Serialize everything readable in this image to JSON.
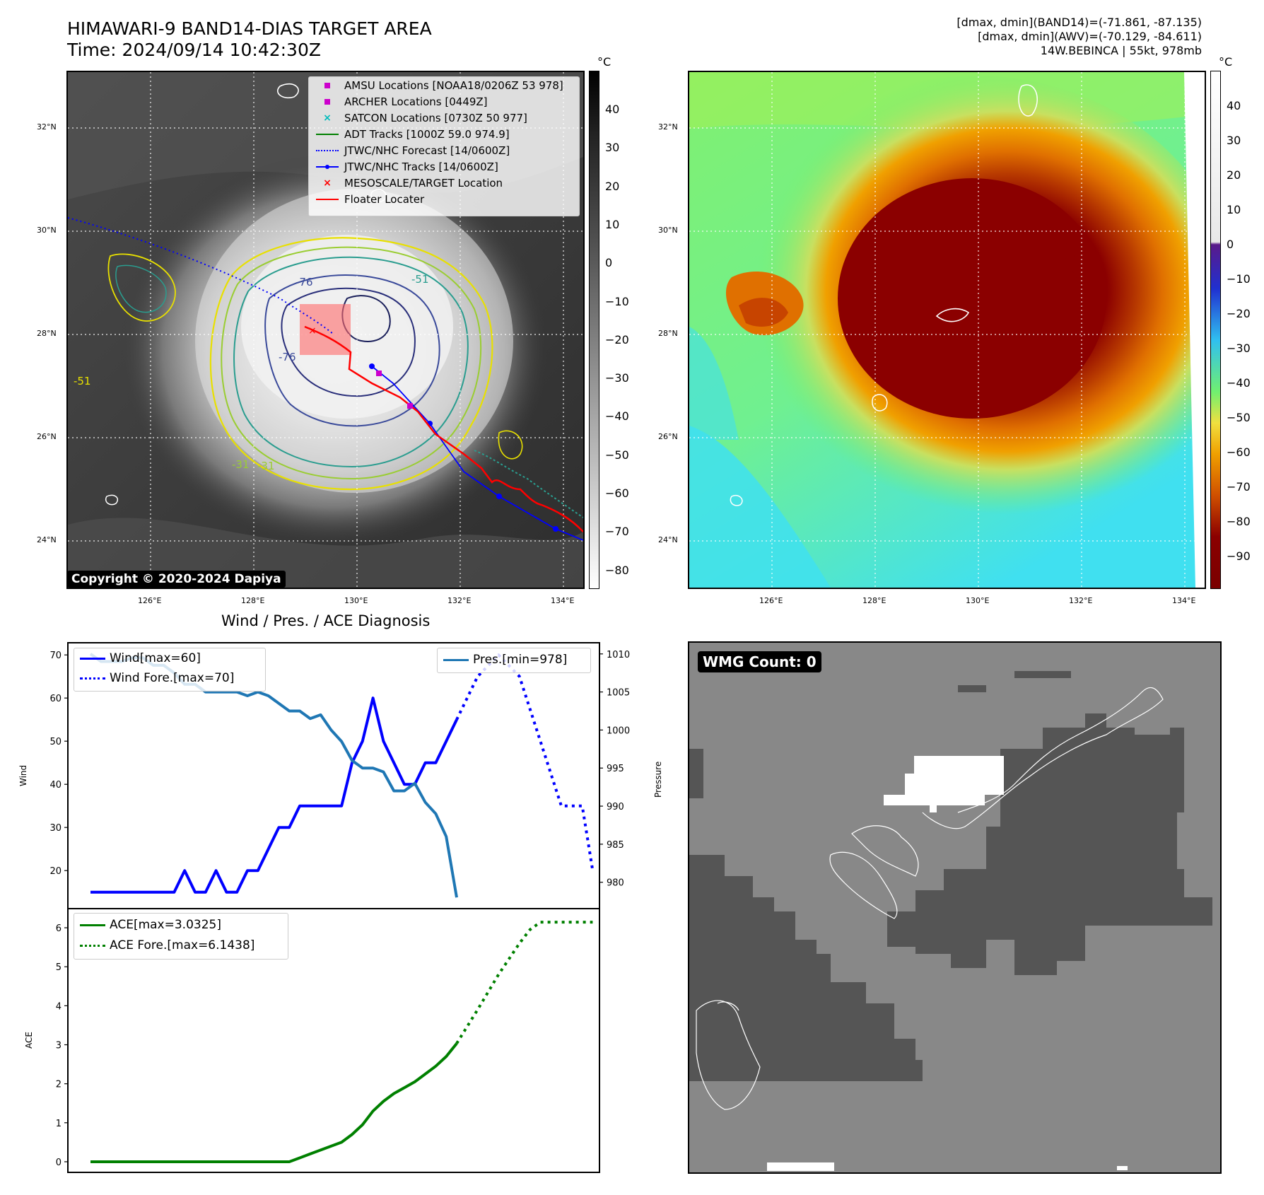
{
  "header": {
    "title_line1": "HIMAWARI-9 BAND14-DIAS TARGET AREA",
    "title_line2": "Time: 2024/09/14 10:42:30Z",
    "info_line1": "[dmax, dmin](BAND14)=(-71.861, -87.135)",
    "info_line2": "[dmax, dmin](AWV)=(-70.129, -84.611)",
    "info_line3": "14W.BEBINCA | 55kt, 978mb"
  },
  "map_ir": {
    "copyright": "Copyright © 2020-2024 Dapiya",
    "unit": "°C",
    "lat_labels": [
      "32°N",
      "30°N",
      "28°N",
      "26°N",
      "24°N"
    ],
    "lon_labels": [
      "126°E",
      "128°E",
      "130°E",
      "132°E",
      "134°E"
    ],
    "colorbar_ticks": [
      "40",
      "30",
      "20",
      "10",
      "0",
      "−10",
      "−20",
      "−30",
      "−40",
      "−50",
      "−60",
      "−70",
      "−80"
    ],
    "contour_labels": [
      "-76",
      "-76",
      "-31",
      "-31",
      "-51",
      "-51"
    ],
    "legend": [
      {
        "label": "AMSU Locations [NOAA18/0206Z 53 978]",
        "symbol": "square",
        "color": "#cc00cc"
      },
      {
        "label": "ARCHER Locations [0449Z]",
        "symbol": "square",
        "color": "#cc00cc"
      },
      {
        "label": "SATCON Locations [0730Z 50 977]",
        "symbol": "x",
        "color": "#00bbbb"
      },
      {
        "label": "ADT Tracks [1000Z 59.0 974.9]",
        "symbol": "line",
        "color": "#008000"
      },
      {
        "label": "JTWC/NHC Forecast [14/0600Z]",
        "symbol": "dotted",
        "color": "#0000ff"
      },
      {
        "label": "JTWC/NHC Tracks [14/0600Z]",
        "symbol": "line-dot",
        "color": "#0000ff"
      },
      {
        "label": "MESOSCALE/TARGET Location",
        "symbol": "x",
        "color": "#ff0000"
      },
      {
        "label": "Floater Locater",
        "symbol": "line",
        "color": "#ff0000"
      }
    ]
  },
  "map_color": {
    "unit": "°C",
    "lat_labels": [
      "32°N",
      "30°N",
      "28°N",
      "26°N",
      "24°N"
    ],
    "lon_labels": [
      "126°E",
      "128°E",
      "130°E",
      "132°E",
      "134°E"
    ],
    "colorbar_ticks": [
      "40",
      "30",
      "20",
      "10",
      "0",
      "−10",
      "−20",
      "−30",
      "−40",
      "−50",
      "−60",
      "−70",
      "−80",
      "−90"
    ]
  },
  "wmg": {
    "badge": "WMG Count: 0"
  },
  "chart_data": [
    {
      "type": "line",
      "title": "Wind / Pres. / ACE Diagnosis",
      "ylabel": "Wind",
      "y2label": "Pressure",
      "ylim": [
        12,
        72
      ],
      "y2lim": [
        977,
        1011
      ],
      "yticks": [
        "70",
        "60",
        "50",
        "40",
        "30",
        "20"
      ],
      "y2ticks": [
        "1010",
        "1005",
        "1000",
        "995",
        "990",
        "985",
        "980"
      ],
      "x": [
        0,
        1,
        2,
        3,
        4,
        5,
        6,
        7,
        8,
        9,
        10,
        11,
        12,
        13,
        14,
        15,
        16,
        17,
        18,
        19,
        20,
        21,
        22,
        23,
        24,
        25,
        26,
        27,
        28,
        29,
        30,
        31,
        32,
        33,
        34,
        35,
        36,
        37
      ],
      "series": [
        {
          "name": "Wind[max=60]",
          "color": "#0000ff",
          "style": "solid",
          "axis": "left",
          "x": [
            0,
            1,
            2,
            3,
            4,
            5,
            6,
            7,
            8,
            9,
            10,
            11,
            12,
            13,
            14,
            15,
            16,
            17,
            18,
            19,
            20,
            21,
            22,
            23,
            24,
            25,
            26,
            27,
            28,
            29,
            30,
            31,
            32,
            33,
            34,
            35,
            36,
            37
          ],
          "values": [
            15,
            15,
            15,
            15,
            15,
            15,
            15,
            15,
            15,
            20,
            15,
            15,
            20,
            15,
            15,
            20,
            20,
            25,
            30,
            30,
            35,
            35,
            35,
            35,
            35,
            45,
            50,
            60,
            50,
            45,
            40,
            40,
            45,
            45,
            50,
            55,
            null,
            null
          ]
        },
        {
          "name": "Wind Fore.[max=70]",
          "color": "#0000ff",
          "style": "dotted",
          "axis": "left",
          "x": [
            35,
            37,
            39,
            41,
            43,
            45,
            47,
            48
          ],
          "values": [
            55,
            65,
            70,
            65,
            50,
            35,
            35,
            20
          ]
        },
        {
          "name": "Pres.[min=978]",
          "color": "#1f77b4",
          "style": "solid",
          "axis": "right",
          "x": [
            0,
            1,
            2,
            3,
            4,
            5,
            6,
            7,
            8,
            9,
            10,
            11,
            12,
            13,
            14,
            15,
            16,
            17,
            18,
            19,
            20,
            21,
            22,
            23,
            24,
            25,
            26,
            27,
            28,
            29,
            30,
            31,
            32,
            33,
            34,
            35
          ],
          "values": [
            1010,
            1009,
            1009,
            1009,
            1009.5,
            1009.5,
            1008.5,
            1008.5,
            1007.5,
            1006,
            1006,
            1005,
            1005,
            1005,
            1005,
            1004.5,
            1005,
            1004.5,
            1003.5,
            1002.5,
            1002.5,
            1001.5,
            1002,
            1000,
            998.5,
            996,
            995,
            995,
            994.5,
            992,
            992,
            993,
            990.5,
            989,
            986,
            978
          ]
        }
      ]
    },
    {
      "type": "line",
      "ylabel": "ACE",
      "ylim": [
        -0.2,
        6.4
      ],
      "yticks": [
        "6",
        "5",
        "4",
        "3",
        "2",
        "1",
        "0"
      ],
      "series": [
        {
          "name": "ACE[max=3.0325]",
          "color": "#008000",
          "style": "solid",
          "x": [
            0,
            5,
            10,
            15,
            19,
            20,
            21,
            22,
            23,
            24,
            25,
            26,
            27,
            28,
            29,
            30,
            31,
            32,
            33,
            34,
            35
          ],
          "values": [
            0,
            0,
            0,
            0,
            0,
            0.1,
            0.2,
            0.3,
            0.4,
            0.5,
            0.7,
            0.95,
            1.3,
            1.55,
            1.75,
            1.9,
            2.05,
            2.25,
            2.45,
            2.7,
            3.0325
          ]
        },
        {
          "name": "ACE Fore.[max=6.1438]",
          "color": "#008000",
          "style": "dotted",
          "x": [
            35,
            37,
            39,
            41,
            42,
            43,
            45,
            48
          ],
          "values": [
            3.0325,
            3.9,
            4.8,
            5.6,
            5.95,
            6.1438,
            6.1438,
            6.1438
          ]
        }
      ]
    }
  ]
}
